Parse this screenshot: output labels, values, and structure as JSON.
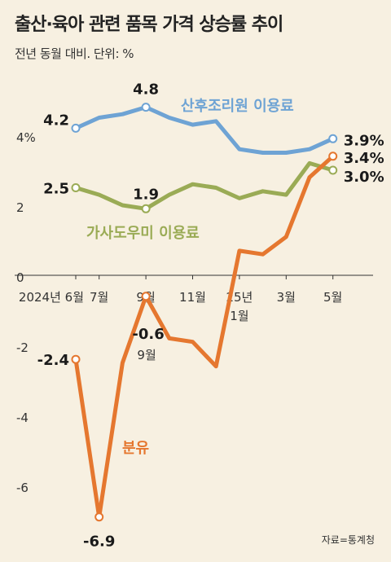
{
  "title": "출산·육아 관련 품목 가격 상승률 추이",
  "subtitle": "전년 동월 대비. 단위: %",
  "source": "자료=통계청",
  "chart_data": {
    "type": "line",
    "title": "출산·육아 관련 품목 가격 상승률 추이",
    "ylabel": "%",
    "ylim": [
      -7.2,
      5.8
    ],
    "y_ticks": [
      {
        "value": 4,
        "label": "4%"
      },
      {
        "value": 2,
        "label": "2"
      },
      {
        "value": 0,
        "label": "0"
      },
      {
        "value": -2,
        "label": "-2"
      },
      {
        "value": -4,
        "label": "-4"
      },
      {
        "value": -6,
        "label": "-6"
      }
    ],
    "x_ticks": [
      {
        "index": 0,
        "label": "2024년 6월"
      },
      {
        "index": 1,
        "label": "7월"
      },
      {
        "index": 3,
        "label": "9월"
      },
      {
        "index": 5,
        "label": "11월"
      },
      {
        "index": 7,
        "label": "25년",
        "label2": "1월"
      },
      {
        "index": 9,
        "label": "3월"
      },
      {
        "index": 11,
        "label": "5월"
      }
    ],
    "categories": [
      "2024-06",
      "2024-07",
      "2024-08",
      "2024-09",
      "2024-10",
      "2024-11",
      "2024-12",
      "2025-01",
      "2025-02",
      "2025-03",
      "2025-04",
      "2025-05"
    ],
    "series": [
      {
        "name": "산후조리원 이용료",
        "color": "#6ea3d4",
        "values": [
          4.2,
          4.5,
          4.6,
          4.8,
          4.5,
          4.3,
          4.4,
          3.6,
          3.5,
          3.5,
          3.6,
          3.9
        ],
        "labels": [
          {
            "index": 0,
            "text": "4.2"
          },
          {
            "index": 3,
            "text": "4.8"
          },
          {
            "index": 11,
            "text": "3.9%"
          }
        ]
      },
      {
        "name": "가사도우미 이용료",
        "color": "#9aab55",
        "values": [
          2.5,
          2.3,
          2.0,
          1.9,
          2.3,
          2.6,
          2.5,
          2.2,
          2.4,
          2.3,
          3.2,
          3.0
        ],
        "labels": [
          {
            "index": 0,
            "text": "2.5"
          },
          {
            "index": 3,
            "text": "1.9"
          },
          {
            "index": 11,
            "text": "3.0%"
          }
        ]
      },
      {
        "name": "분유",
        "color": "#e5772f",
        "values": [
          -2.4,
          -6.9,
          -2.5,
          -0.6,
          -1.8,
          -1.9,
          -2.6,
          0.7,
          0.6,
          1.1,
          2.8,
          3.4
        ],
        "labels": [
          {
            "index": 0,
            "text": "-2.4"
          },
          {
            "index": 1,
            "text": "-6.9"
          },
          {
            "index": 3,
            "text": "-0.6",
            "sub": "9월"
          },
          {
            "index": 11,
            "text": "3.4%"
          }
        ]
      }
    ],
    "grid": false,
    "legend": "inline"
  }
}
